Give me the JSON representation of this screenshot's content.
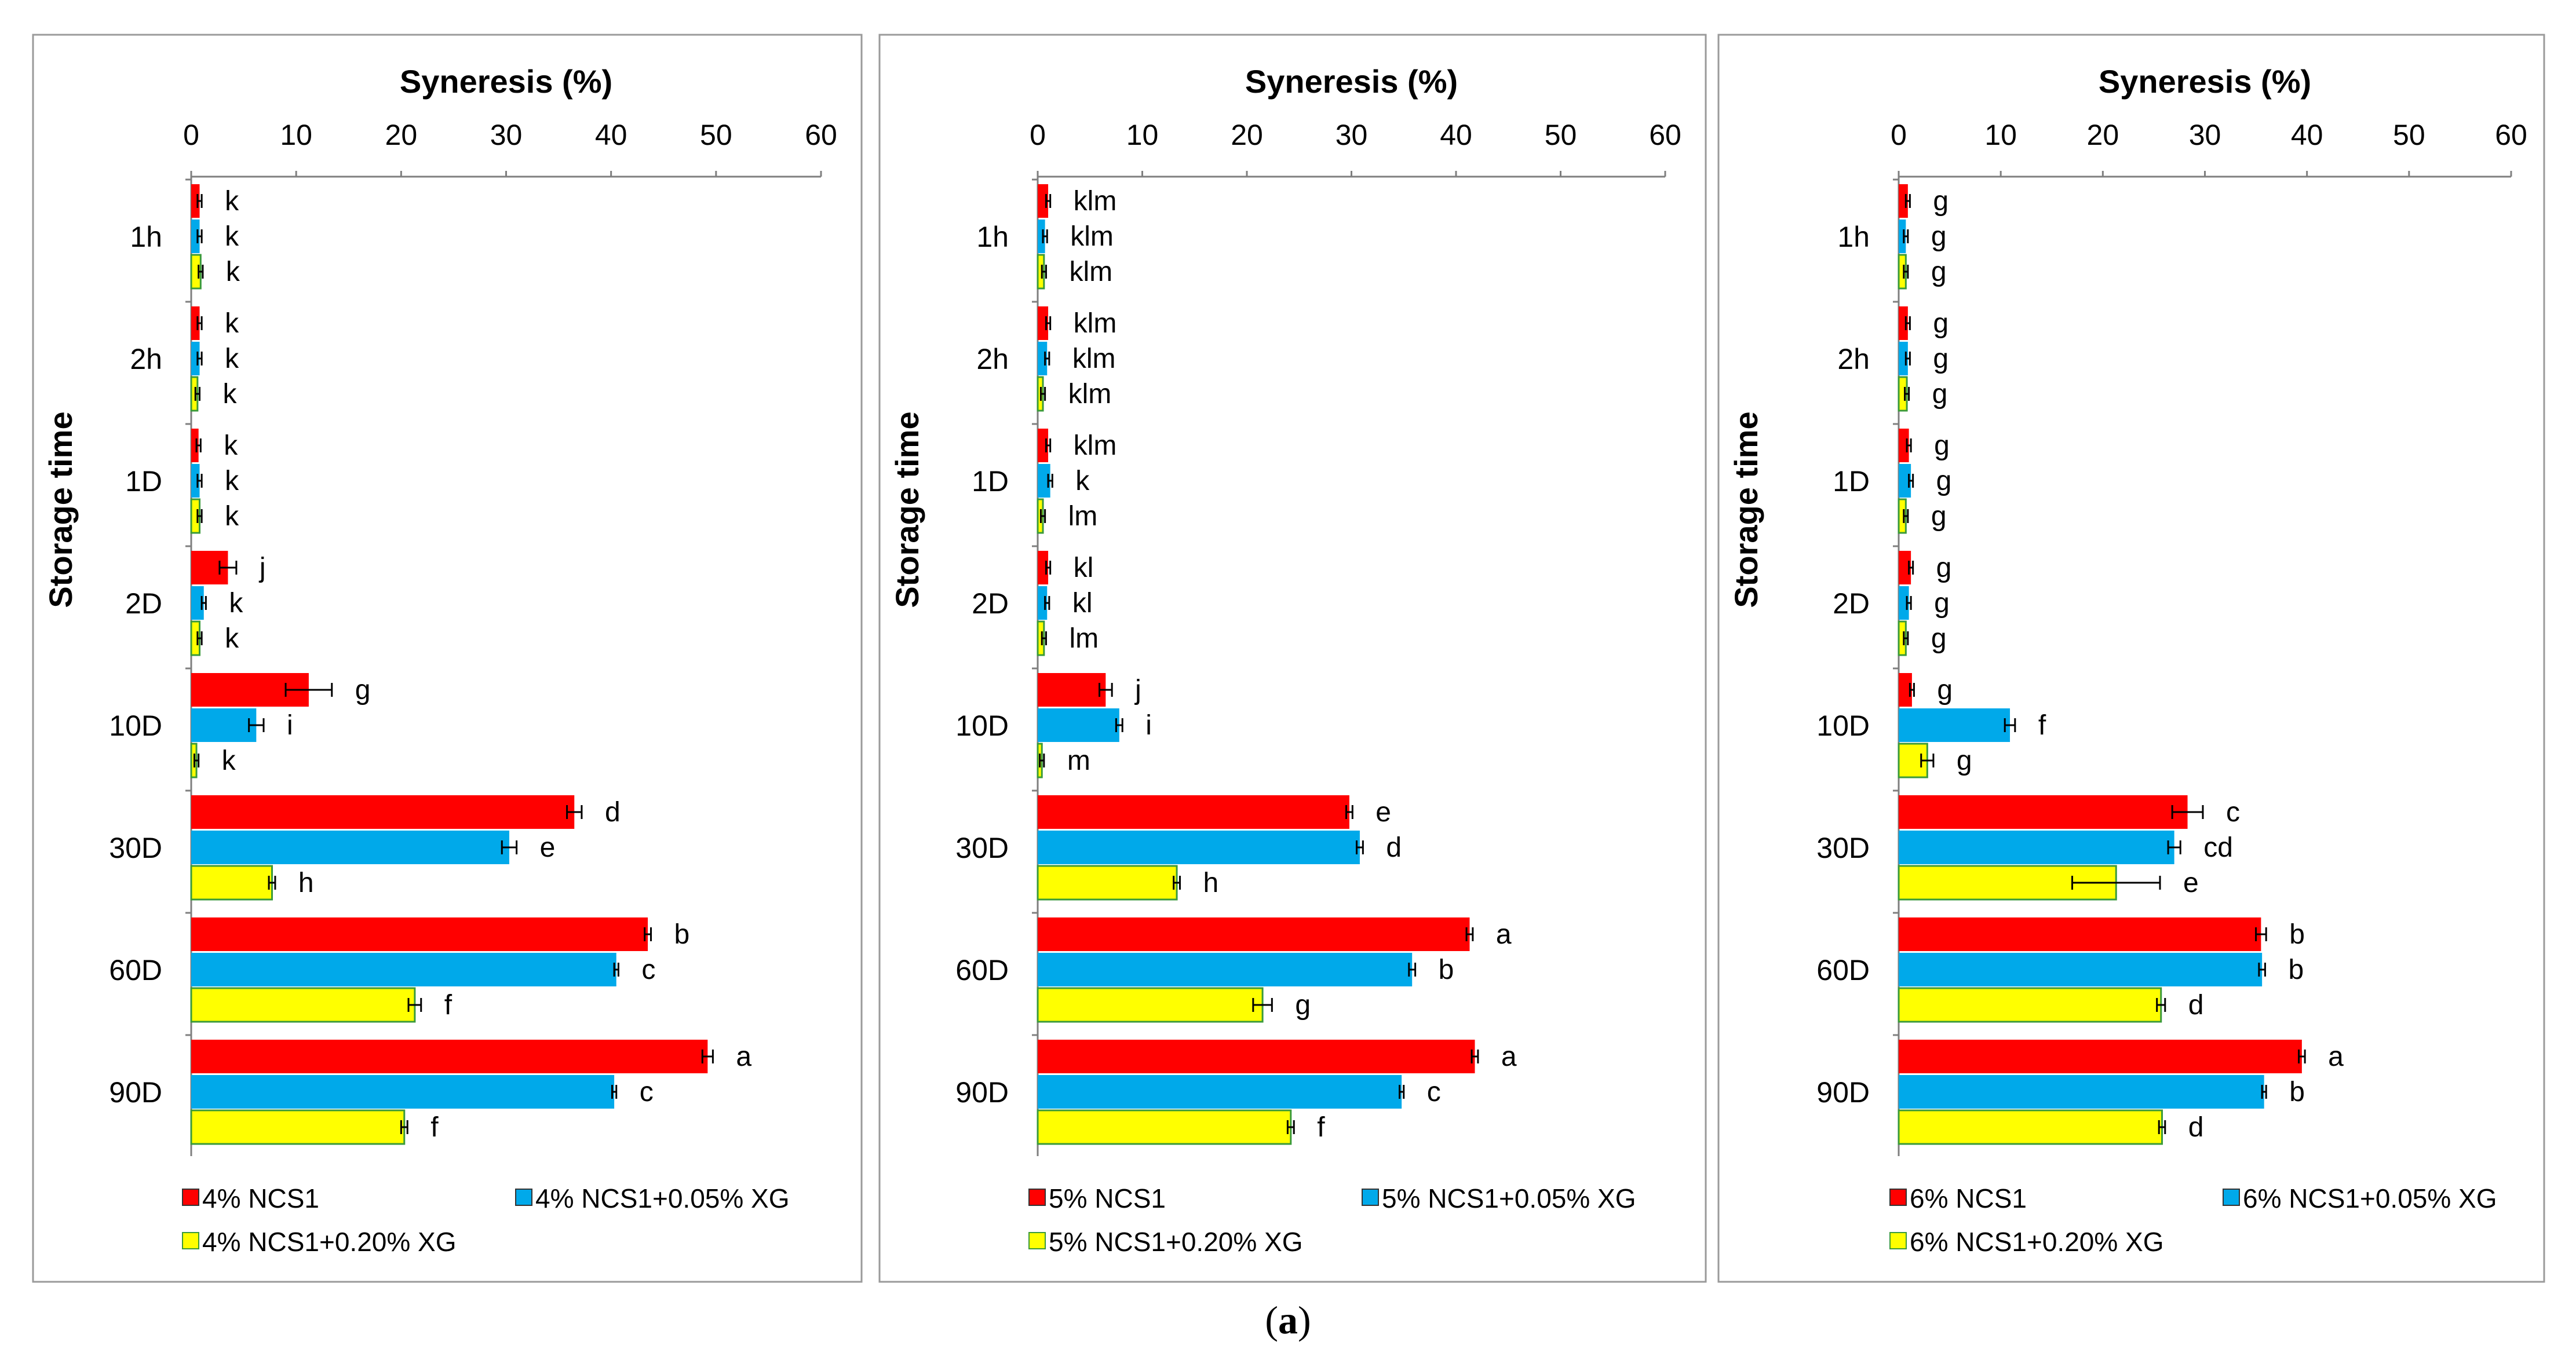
{
  "figure_label": "a",
  "chart_data": [
    {
      "type": "bar",
      "orientation": "horizontal",
      "xlabel": "Syneresis (%)",
      "ylabel": "Storage time",
      "xlim": [
        0,
        60
      ],
      "xticks": [
        0,
        10,
        20,
        30,
        40,
        50,
        60
      ],
      "categories": [
        "1h",
        "2h",
        "1D",
        "2D",
        "10D",
        "30D",
        "60D",
        "90D"
      ],
      "grid": false,
      "legend": "bottom",
      "series": [
        {
          "name": "4% NCS1",
          "color": "#ff0000",
          "values": [
            0.8,
            0.8,
            0.7,
            3.5,
            11.2,
            36.5,
            43.5,
            49.2
          ],
          "errors": [
            0.2,
            0.2,
            0.2,
            0.8,
            2.2,
            0.7,
            0.3,
            0.5
          ],
          "letters": [
            "k",
            "k",
            "k",
            "j",
            "g",
            "d",
            "b",
            "a"
          ]
        },
        {
          "name": "4% NCS1+0.05% XG",
          "color": "#00a9ea",
          "values": [
            0.8,
            0.8,
            0.8,
            1.2,
            6.2,
            30.3,
            40.5,
            40.3
          ],
          "errors": [
            0.2,
            0.2,
            0.2,
            0.2,
            0.7,
            0.7,
            0.2,
            0.2
          ],
          "letters": [
            "k",
            "k",
            "k",
            "k",
            "i",
            "e",
            "c",
            "c"
          ]
        },
        {
          "name": "4% NCS1+0.20% XG",
          "color": "#ffff00",
          "values": [
            0.9,
            0.6,
            0.8,
            0.8,
            0.5,
            7.7,
            21.3,
            20.3
          ],
          "errors": [
            0.2,
            0.2,
            0.2,
            0.2,
            0.2,
            0.3,
            0.6,
            0.3
          ],
          "letters": [
            "k",
            "k",
            "k",
            "k",
            "k",
            "h",
            "f",
            "f"
          ]
        }
      ]
    },
    {
      "type": "bar",
      "orientation": "horizontal",
      "xlabel": "Syneresis (%)",
      "ylabel": "Storage time",
      "xlim": [
        0,
        60
      ],
      "xticks": [
        0,
        10,
        20,
        30,
        40,
        50,
        60
      ],
      "categories": [
        "1h",
        "2h",
        "1D",
        "2D",
        "10D",
        "30D",
        "60D",
        "90D"
      ],
      "grid": false,
      "legend": "bottom",
      "series": [
        {
          "name": "5% NCS1",
          "color": "#ff0000",
          "values": [
            1.0,
            1.0,
            1.0,
            1.0,
            6.5,
            29.8,
            41.3,
            41.8
          ],
          "errors": [
            0.2,
            0.2,
            0.2,
            0.2,
            0.6,
            0.3,
            0.3,
            0.3
          ],
          "letters": [
            "klm",
            "klm",
            "klm",
            "kl",
            "j",
            "e",
            "a",
            "a"
          ]
        },
        {
          "name": "5% NCS1+0.05% XG",
          "color": "#00a9ea",
          "values": [
            0.7,
            0.9,
            1.2,
            0.9,
            7.8,
            30.8,
            35.8,
            34.8
          ],
          "errors": [
            0.2,
            0.2,
            0.2,
            0.2,
            0.3,
            0.3,
            0.3,
            0.2
          ],
          "letters": [
            "klm",
            "klm",
            "k",
            "kl",
            "i",
            "d",
            "b",
            "c"
          ]
        },
        {
          "name": "5% NCS1+0.20% XG",
          "color": "#ffff00",
          "values": [
            0.6,
            0.5,
            0.5,
            0.6,
            0.4,
            13.3,
            21.5,
            24.2
          ],
          "errors": [
            0.2,
            0.2,
            0.2,
            0.2,
            0.2,
            0.3,
            0.9,
            0.3
          ],
          "letters": [
            "klm",
            "klm",
            "lm",
            "lm",
            "m",
            "h",
            "g",
            "f"
          ]
        }
      ]
    },
    {
      "type": "bar",
      "orientation": "horizontal",
      "xlabel": "Syneresis (%)",
      "ylabel": "Storage time",
      "xlim": [
        0,
        60
      ],
      "xticks": [
        0,
        10,
        20,
        30,
        40,
        50,
        60
      ],
      "categories": [
        "1h",
        "2h",
        "1D",
        "2D",
        "10D",
        "30D",
        "60D",
        "90D"
      ],
      "grid": false,
      "legend": "bottom",
      "series": [
        {
          "name": "6% NCS1",
          "color": "#ff0000",
          "values": [
            0.9,
            0.9,
            1.0,
            1.2,
            1.3,
            28.3,
            35.5,
            39.5
          ],
          "errors": [
            0.2,
            0.2,
            0.2,
            0.2,
            0.2,
            1.5,
            0.5,
            0.3
          ],
          "letters": [
            "g",
            "g",
            "g",
            "g",
            "g",
            "c",
            "b",
            "a"
          ]
        },
        {
          "name": "6% NCS1+0.05% XG",
          "color": "#00a9ea",
          "values": [
            0.7,
            0.9,
            1.2,
            1.0,
            10.9,
            27.0,
            35.6,
            35.8
          ],
          "errors": [
            0.2,
            0.2,
            0.2,
            0.2,
            0.5,
            0.6,
            0.3,
            0.2
          ],
          "letters": [
            "g",
            "g",
            "g",
            "g",
            "f",
            "cd",
            "b",
            "b"
          ]
        },
        {
          "name": "6% NCS1+0.20% XG",
          "color": "#ffff00",
          "values": [
            0.7,
            0.8,
            0.7,
            0.7,
            2.8,
            21.3,
            25.7,
            25.8
          ],
          "errors": [
            0.2,
            0.2,
            0.2,
            0.2,
            0.6,
            4.3,
            0.4,
            0.3
          ],
          "letters": [
            "g",
            "g",
            "g",
            "g",
            "g",
            "e",
            "d",
            "d"
          ]
        }
      ]
    }
  ]
}
